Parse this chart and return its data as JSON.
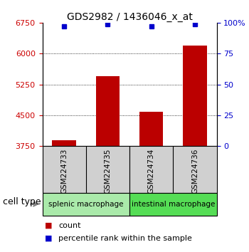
{
  "title": "GDS2982 / 1436046_x_at",
  "samples": [
    "GSM224733",
    "GSM224735",
    "GSM224734",
    "GSM224736"
  ],
  "counts": [
    3900,
    5450,
    4580,
    6200
  ],
  "percentile_ranks": [
    97,
    99,
    97,
    99
  ],
  "ylim_left": [
    3750,
    6750
  ],
  "yticks_left": [
    3750,
    4500,
    5250,
    6000,
    6750
  ],
  "yticks_right": [
    0,
    25,
    50,
    75,
    100
  ],
  "ylim_right": [
    0,
    100
  ],
  "bar_color": "#bb0000",
  "dot_color": "#0000cc",
  "groups": [
    {
      "label": "splenic macrophage",
      "indices": [
        0,
        1
      ],
      "color": "#aaeaaa"
    },
    {
      "label": "intestinal macrophage",
      "indices": [
        2,
        3
      ],
      "color": "#55dd55"
    }
  ],
  "cell_type_label": "cell type",
  "legend_count_label": "count",
  "legend_percentile_label": "percentile rank within the sample",
  "title_fontsize": 10,
  "tick_label_fontsize": 8,
  "sample_label_fontsize": 7.5,
  "group_label_fontsize": 7.5,
  "legend_fontsize": 8,
  "cell_type_fontsize": 9,
  "left_tick_color": "#cc0000",
  "right_tick_color": "#0000cc",
  "sample_box_color": "#d0d0d0",
  "grid_lines": [
    6000,
    5250,
    4500
  ]
}
